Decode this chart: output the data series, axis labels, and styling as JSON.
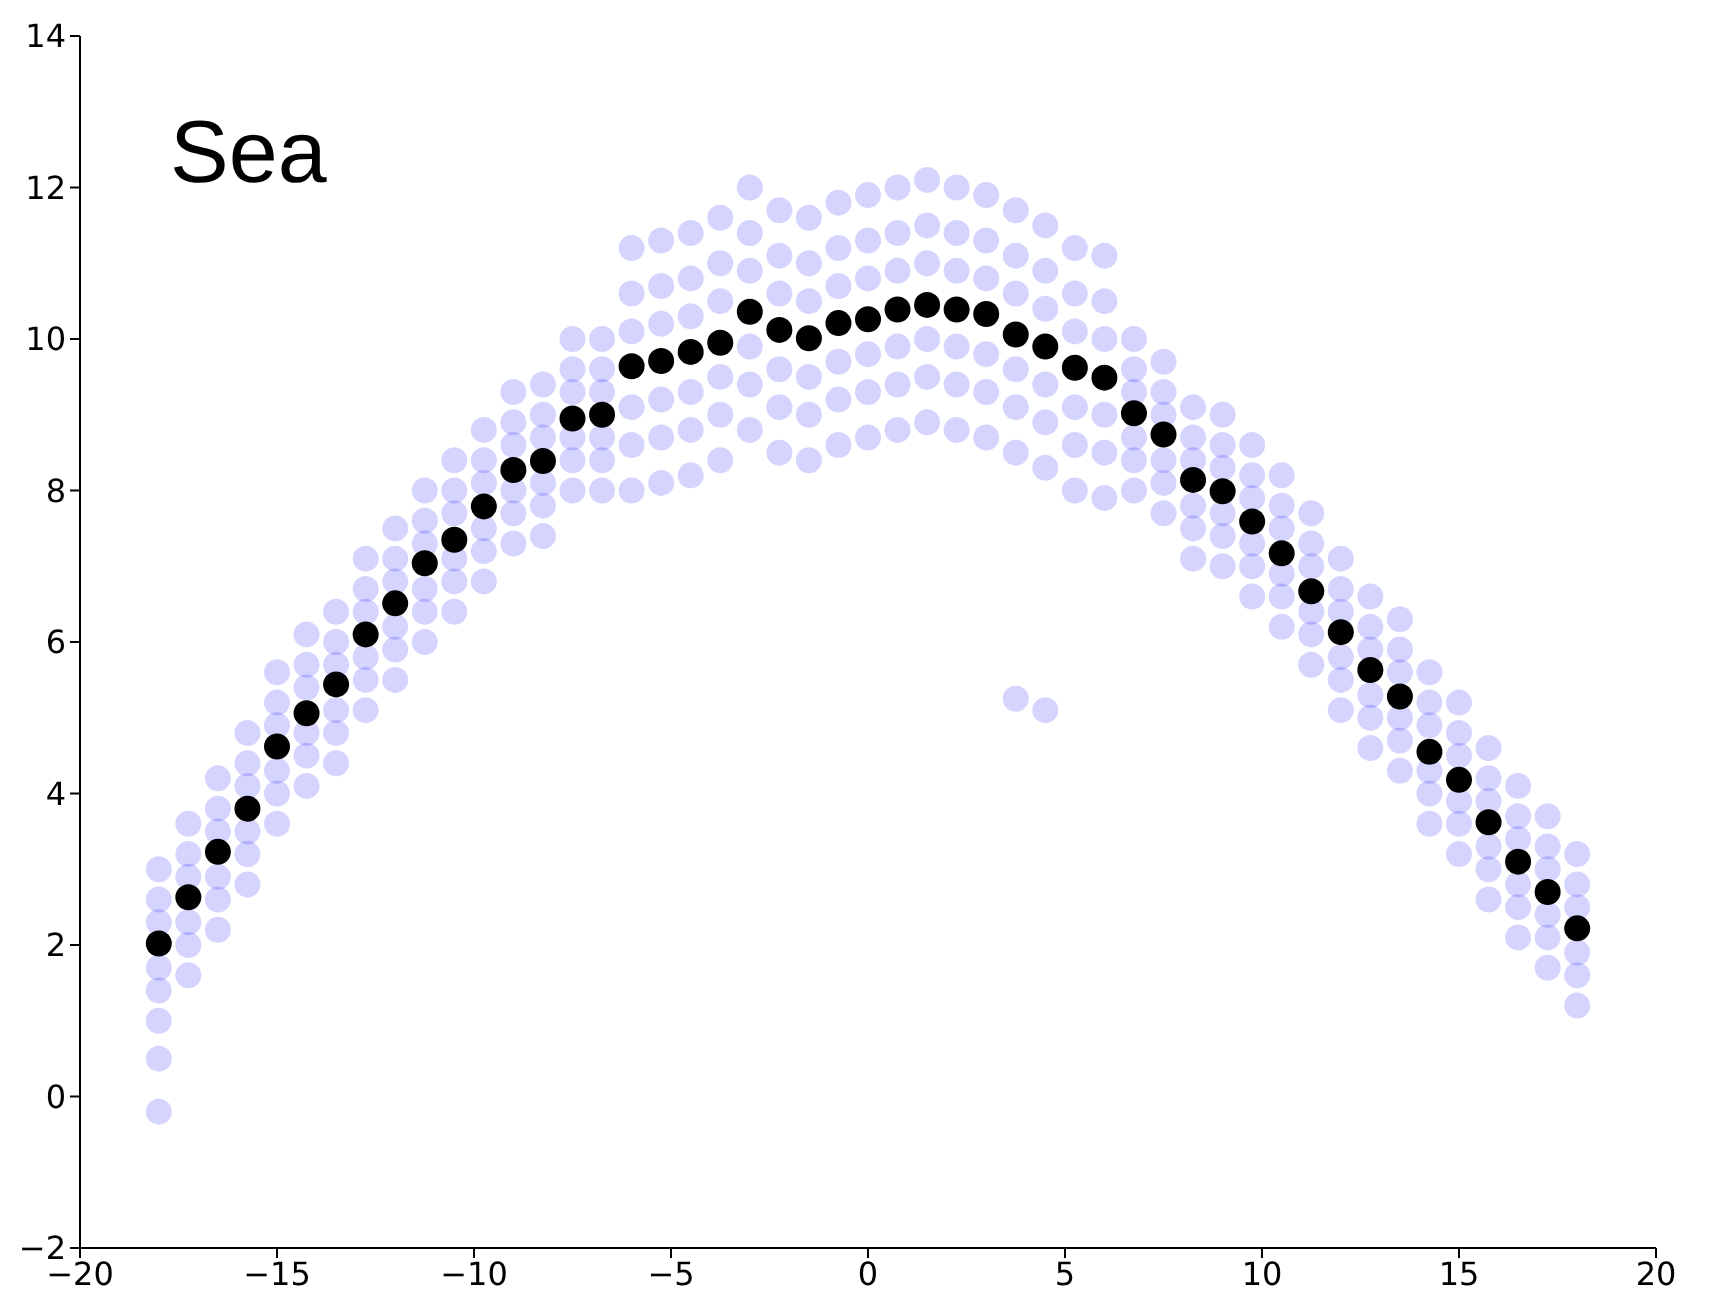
{
  "chart_data": {
    "type": "scatter",
    "annotations": [
      "Sea"
    ],
    "x": [
      -18,
      -17.25,
      -16.5,
      -15.75,
      -15,
      -14.25,
      -13.5,
      -12.75,
      -12,
      -11.25,
      -10.5,
      -9.75,
      -9,
      -8.25,
      -7.5,
      -6.75,
      -6,
      -5.25,
      -4.5,
      -3.75,
      -3,
      -2.25,
      -1.5,
      -0.75,
      0,
      0.75,
      1.5,
      2.25,
      3,
      3.75,
      4.5,
      5.25,
      6,
      6.75,
      7.5,
      8.25,
      9,
      9.75,
      10.5,
      11.25,
      12,
      12.75,
      13.5,
      14.25,
      15,
      15.75,
      16.5,
      17.25,
      18
    ],
    "xlim": [
      -20,
      20
    ],
    "xticks": [
      -20,
      -15,
      -10,
      -5,
      0,
      5,
      10,
      15,
      20
    ],
    "ylim": [
      -2,
      14
    ],
    "yticks": [
      -2,
      0,
      2,
      4,
      6,
      8,
      10,
      12,
      14
    ],
    "marker": "circle",
    "grid": false,
    "series": [
      {
        "color": "#0000ff",
        "values": [
          1.0,
          1.6,
          2.2,
          2.8,
          3.6,
          4.1,
          4.4,
          5.1,
          5.5,
          6.0,
          6.4,
          6.8,
          7.3,
          7.4,
          8.0,
          8.0,
          8.0,
          8.1,
          8.2,
          8.4,
          8.8,
          8.5,
          8.4,
          8.6,
          8.7,
          8.8,
          8.9,
          8.8,
          8.7,
          8.5,
          8.3,
          8.0,
          7.9,
          8.0,
          7.7,
          7.1,
          7.0,
          6.6,
          6.2,
          5.7,
          5.1,
          4.6,
          4.3,
          3.6,
          3.2,
          2.6,
          2.1,
          1.7,
          1.2
        ]
      },
      {
        "color": "#0000ff",
        "values": [
          1.4,
          2.0,
          2.6,
          3.2,
          4.0,
          4.5,
          4.8,
          5.5,
          5.9,
          6.4,
          6.8,
          7.2,
          7.7,
          7.8,
          8.4,
          8.4,
          8.6,
          8.7,
          8.8,
          9.0,
          9.4,
          9.1,
          9.0,
          9.2,
          9.3,
          9.4,
          9.5,
          9.4,
          9.3,
          9.1,
          8.9,
          8.6,
          8.5,
          8.4,
          8.1,
          7.5,
          7.4,
          7.0,
          6.6,
          6.1,
          5.5,
          5.0,
          4.7,
          4.0,
          3.6,
          3.0,
          2.5,
          2.1,
          1.6
        ]
      },
      {
        "color": "#0000ff",
        "values": [
          1.7,
          2.3,
          2.9,
          3.5,
          4.3,
          4.8,
          5.1,
          5.8,
          6.2,
          6.7,
          7.1,
          7.5,
          8.0,
          8.1,
          8.7,
          8.7,
          9.1,
          9.2,
          9.3,
          9.5,
          9.9,
          9.6,
          9.5,
          9.7,
          9.8,
          9.9,
          10.0,
          9.9,
          9.8,
          9.6,
          9.4,
          9.1,
          9.0,
          8.7,
          8.4,
          7.8,
          7.7,
          7.3,
          6.9,
          6.4,
          5.8,
          5.3,
          5.0,
          4.3,
          3.9,
          3.3,
          2.8,
          2.4,
          1.9
        ]
      },
      {
        "color": "#0000ff",
        "values": [
          2.3,
          2.9,
          3.5,
          4.1,
          4.9,
          5.4,
          5.7,
          6.4,
          6.8,
          7.3,
          7.7,
          8.1,
          8.6,
          8.7,
          9.3,
          9.3,
          10.1,
          10.2,
          10.3,
          10.5,
          10.9,
          10.6,
          10.5,
          10.7,
          10.8,
          10.9,
          11.0,
          10.9,
          10.8,
          10.6,
          10.4,
          10.1,
          10.0,
          9.3,
          9.0,
          8.4,
          8.3,
          7.9,
          7.5,
          7.0,
          6.4,
          5.9,
          5.6,
          4.9,
          4.5,
          3.9,
          3.4,
          3.0,
          2.5
        ]
      },
      {
        "color": "#0000ff",
        "values": [
          2.6,
          3.2,
          3.8,
          4.4,
          5.2,
          5.7,
          6.0,
          6.7,
          7.1,
          7.6,
          8.0,
          8.4,
          8.9,
          9.0,
          9.6,
          9.6,
          10.6,
          10.7,
          10.8,
          11.0,
          11.4,
          11.1,
          11.0,
          11.2,
          11.3,
          11.4,
          11.5,
          11.4,
          11.3,
          11.1,
          10.9,
          10.6,
          10.5,
          9.6,
          9.3,
          8.7,
          8.6,
          8.2,
          7.8,
          7.3,
          6.7,
          6.2,
          5.9,
          5.2,
          4.8,
          4.2,
          3.7,
          3.3,
          2.8
        ]
      },
      {
        "color": "#0000ff",
        "values": [
          3.0,
          3.6,
          4.2,
          4.8,
          5.6,
          6.1,
          6.4,
          7.1,
          7.5,
          8.0,
          8.4,
          8.8,
          9.3,
          9.4,
          10.0,
          10.0,
          11.2,
          11.3,
          11.4,
          11.6,
          12.0,
          11.7,
          11.6,
          11.8,
          11.9,
          12.0,
          12.1,
          12.0,
          11.9,
          11.7,
          11.5,
          11.2,
          11.1,
          10.0,
          9.7,
          9.1,
          9.0,
          8.6,
          8.2,
          7.7,
          7.1,
          6.6,
          6.3,
          5.6,
          5.2,
          4.6,
          4.1,
          3.7,
          3.2
        ]
      },
      {
        "color": "#0000ff",
        "x": [
          -18,
          -18,
          3.75,
          4.5
        ],
        "values": [
          -0.2,
          0.5,
          5.25,
          5.1
        ]
      },
      {
        "color": "#000000",
        "values": [
          2.02,
          2.63,
          3.23,
          3.8,
          4.62,
          5.06,
          5.44,
          6.1,
          6.51,
          7.04,
          7.35,
          7.79,
          8.27,
          8.39,
          8.95,
          9.0,
          9.64,
          9.71,
          9.83,
          9.95,
          10.36,
          10.12,
          10.01,
          10.21,
          10.26,
          10.39,
          10.45,
          10.39,
          10.33,
          10.06,
          9.9,
          9.62,
          9.49,
          9.02,
          8.74,
          8.14,
          7.99,
          7.59,
          7.17,
          6.67,
          6.13,
          5.63,
          5.28,
          4.55,
          4.18,
          3.62,
          3.1,
          2.7,
          2.22
        ]
      }
    ]
  }
}
